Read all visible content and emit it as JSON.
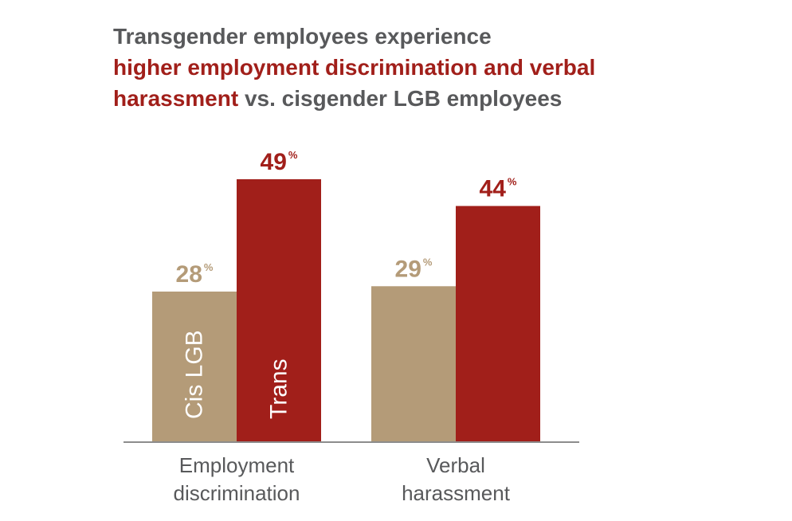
{
  "title": {
    "line1": "Transgender employees experience",
    "line2": "higher employment discrimination and verbal",
    "line3_highlight": "harassment",
    "line3_rest": " vs. cisgender LGB employees"
  },
  "colors": {
    "cis": "#b49b78",
    "trans": "#a11f1a",
    "title": "#58595b",
    "axis_label": "#58595b",
    "baseline": "#8c8c8c"
  },
  "chart_data": {
    "type": "bar",
    "categories": [
      "Employment discrimination",
      "Verbal harassment"
    ],
    "category_label_lines": [
      [
        "Employment",
        "discrimination"
      ],
      [
        "Verbal",
        "harassment"
      ]
    ],
    "series": [
      {
        "name": "Cis LGB",
        "values": [
          28,
          29
        ]
      },
      {
        "name": "Trans",
        "values": [
          49,
          44
        ]
      }
    ],
    "value_suffix": "%",
    "ylim": [
      0,
      65
    ],
    "grid": false,
    "legend": "labels inside first pair of bars"
  }
}
